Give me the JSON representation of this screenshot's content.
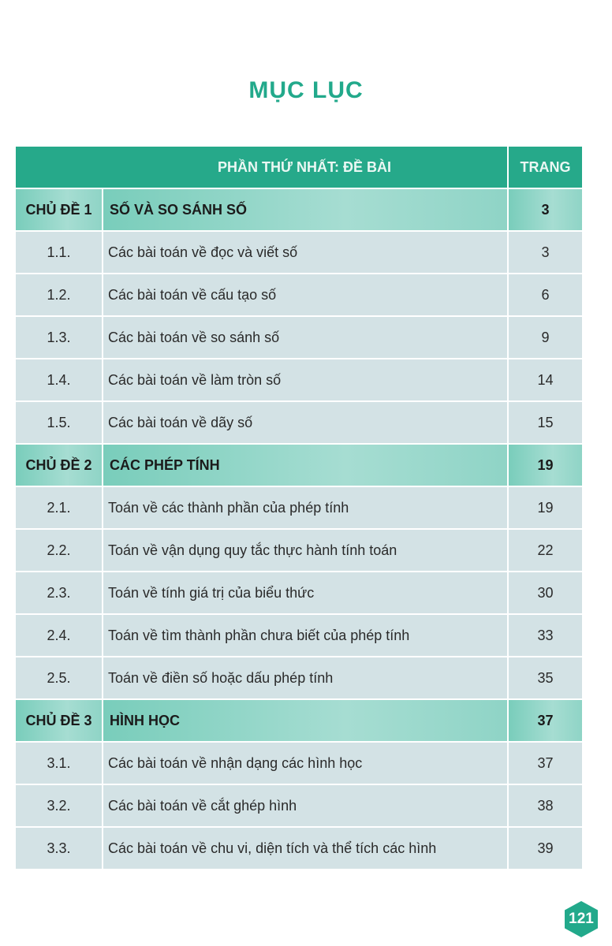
{
  "title": "MỤC LỤC",
  "header": {
    "section": "PHẦN THỨ NHẤT: ĐỀ BÀI",
    "page_col": "TRANG"
  },
  "rows": [
    {
      "type": "chap",
      "num": "CHỦ ĐỀ 1",
      "text": "SỐ VÀ SO SÁNH SỐ",
      "page": "3"
    },
    {
      "type": "item",
      "num": "1.1.",
      "text": "Các bài toán về đọc và viết số",
      "page": "3"
    },
    {
      "type": "item",
      "num": "1.2.",
      "text": "Các bài toán về cấu tạo số",
      "page": "6"
    },
    {
      "type": "item",
      "num": "1.3.",
      "text": "Các bài toán về so sánh số",
      "page": "9"
    },
    {
      "type": "item",
      "num": "1.4.",
      "text": "Các bài toán về làm tròn số",
      "page": "14"
    },
    {
      "type": "item",
      "num": "1.5.",
      "text": "Các bài toán về dãy số",
      "page": "15"
    },
    {
      "type": "chap",
      "num": "CHỦ ĐỀ 2",
      "text": "CÁC PHÉP TÍNH",
      "page": "19"
    },
    {
      "type": "item",
      "num": "2.1.",
      "text": "Toán về các thành phần của phép tính",
      "page": "19"
    },
    {
      "type": "item",
      "num": "2.2.",
      "text": "Toán về vận dụng quy tắc thực hành tính toán",
      "page": "22"
    },
    {
      "type": "item",
      "num": "2.3.",
      "text": "Toán về tính giá trị của biểu thức",
      "page": "30"
    },
    {
      "type": "item",
      "num": "2.4.",
      "text": "Toán về tìm thành phần chưa biết của phép tính",
      "page": "33"
    },
    {
      "type": "item",
      "num": "2.5.",
      "text": "Toán về điền số hoặc dấu phép tính",
      "page": "35"
    },
    {
      "type": "chap",
      "num": "CHỦ ĐỀ 3",
      "text": "HÌNH HỌC",
      "page": "37"
    },
    {
      "type": "item",
      "num": "3.1.",
      "text": "Các bài toán về nhận dạng các hình học",
      "page": "37"
    },
    {
      "type": "item",
      "num": "3.2.",
      "text": "Các bài toán về cắt ghép hình",
      "page": "38"
    },
    {
      "type": "item",
      "num": "3.3.",
      "text": "Các bài toán về chu vi, diện tích và thể tích các hình",
      "page": "39"
    }
  ],
  "page_number": "121",
  "colors": {
    "accent": "#22a98b",
    "chapter_row": "#8fd4c6",
    "item_row": "#d3e2e5"
  }
}
